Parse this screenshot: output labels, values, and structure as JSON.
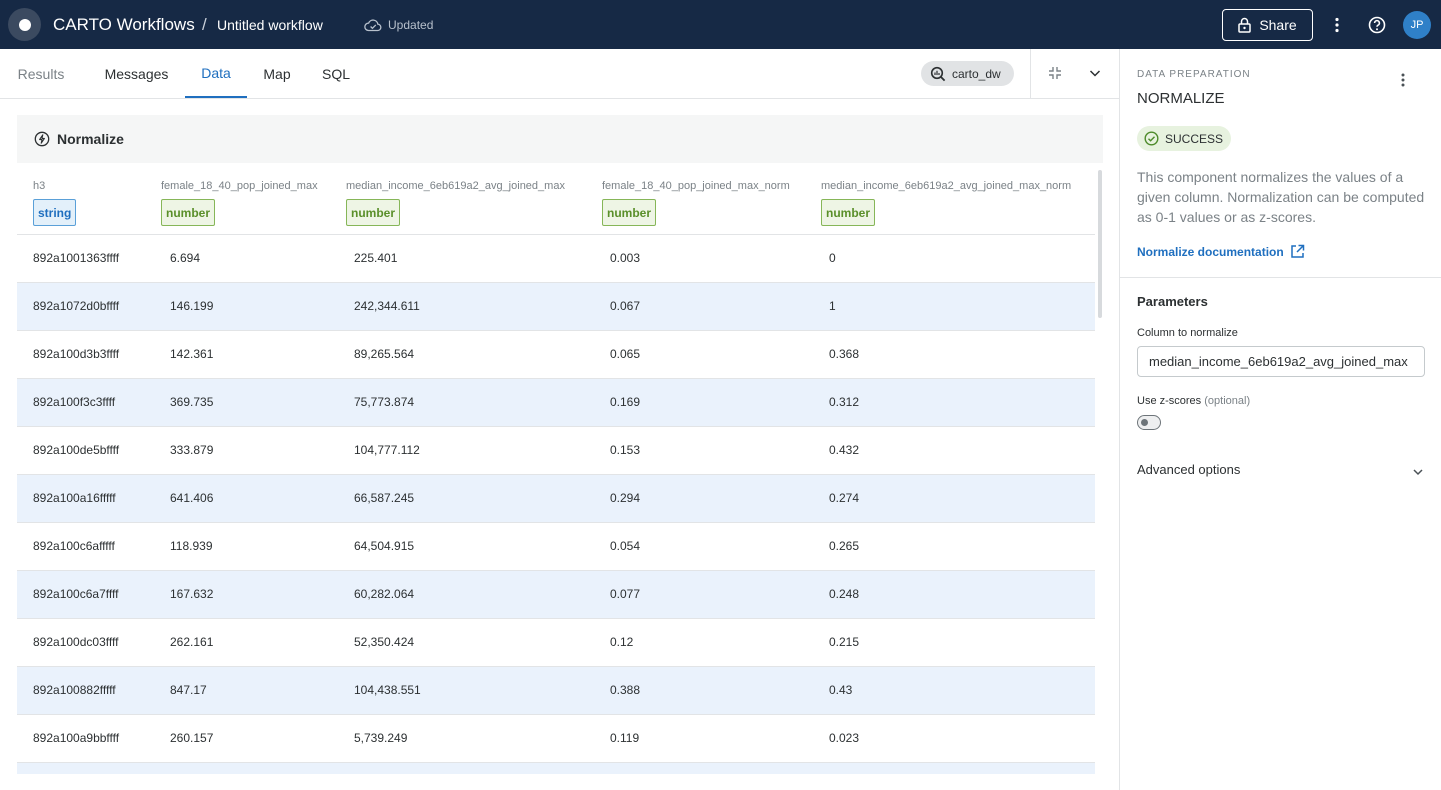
{
  "topbar": {
    "app_title": "CARTO Workflows",
    "separator": "/",
    "workflow_name": "Untitled workflow",
    "status": "Updated",
    "share_label": "Share",
    "avatar_initials": "JP"
  },
  "tabs": [
    {
      "label": "Results"
    },
    {
      "label": "Messages"
    },
    {
      "label": "Data"
    },
    {
      "label": "Map"
    },
    {
      "label": "SQL"
    }
  ],
  "connection": "carto_dw",
  "node": {
    "name": "Normalize"
  },
  "table": {
    "columns": [
      {
        "name": "h3",
        "type": "string"
      },
      {
        "name": "female_18_40_pop_joined_max",
        "type": "number"
      },
      {
        "name": "median_income_6eb619a2_avg_joined_max",
        "type": "number"
      },
      {
        "name": "female_18_40_pop_joined_max_norm",
        "type": "number"
      },
      {
        "name": "median_income_6eb619a2_avg_joined_max_norm",
        "type": "number"
      }
    ],
    "rows": [
      [
        "892a1001363ffff",
        "6.694",
        "225.401",
        "0.003",
        "0"
      ],
      [
        "892a1072d0bffff",
        "146.199",
        "242,344.611",
        "0.067",
        "1"
      ],
      [
        "892a100d3b3ffff",
        "142.361",
        "89,265.564",
        "0.065",
        "0.368"
      ],
      [
        "892a100f3c3ffff",
        "369.735",
        "75,773.874",
        "0.169",
        "0.312"
      ],
      [
        "892a100de5bffff",
        "333.879",
        "104,777.112",
        "0.153",
        "0.432"
      ],
      [
        "892a100a16fffff",
        "641.406",
        "66,587.245",
        "0.294",
        "0.274"
      ],
      [
        "892a100c6afffff",
        "118.939",
        "64,504.915",
        "0.054",
        "0.265"
      ],
      [
        "892a100c6a7ffff",
        "167.632",
        "60,282.064",
        "0.077",
        "0.248"
      ],
      [
        "892a100dc03ffff",
        "262.161",
        "52,350.424",
        "0.12",
        "0.215"
      ],
      [
        "892a100882fffff",
        "847.17",
        "104,438.551",
        "0.388",
        "0.43"
      ],
      [
        "892a100a9bbffff",
        "260.157",
        "5,739.249",
        "0.119",
        "0.023"
      ]
    ]
  },
  "panel": {
    "overline": "DATA PREPARATION",
    "title": "NORMALIZE",
    "status": "SUCCESS",
    "description": "This component normalizes the values of a given column. Normalization can be computed as 0-1 values or as z-scores.",
    "doc_link": "Normalize documentation",
    "parameters_heading": "Parameters",
    "column_label": "Column to normalize",
    "column_value": "median_income_6eb619a2_avg_joined_max",
    "zscores_label": "Use z-scores",
    "zscores_optional": "(optional)",
    "zscores_on": false,
    "advanced_label": "Advanced options"
  },
  "icons": {
    "status": "cloud-check-icon",
    "share": "lock-icon",
    "menu": "kebab-icon",
    "help": "help-icon",
    "connection": "search-database-icon",
    "collapse": "collapse-icon",
    "expand": "chevron-down-icon",
    "node": "lightning-icon",
    "success": "check-circle-icon",
    "external": "external-link-icon"
  },
  "colors": {
    "topbar": "#162945",
    "accent": "#1f6fbf",
    "row_alt": "#eaf2fc",
    "string_badge": "#1f6fbf",
    "number_badge": "#5a8f2a",
    "success_bg": "#e7f2df"
  }
}
